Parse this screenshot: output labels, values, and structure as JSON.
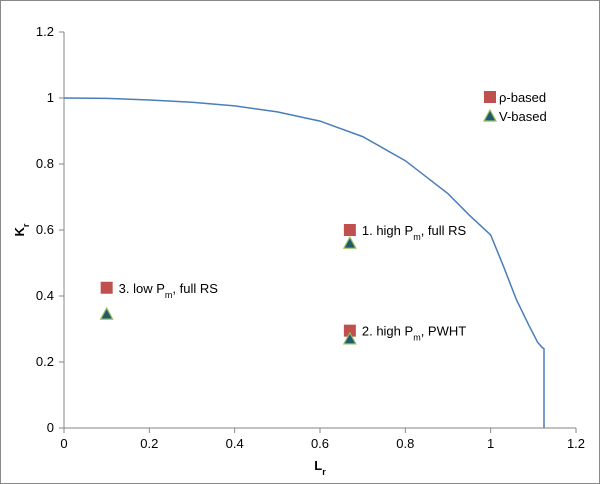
{
  "chart_data": {
    "type": "scatter",
    "xlabel": {
      "text": "L",
      "subscript": "r"
    },
    "ylabel": {
      "text": "K",
      "subscript": "r"
    },
    "xlim": [
      0,
      1.2
    ],
    "xticks": [
      0,
      0.2,
      0.4,
      0.6,
      0.8,
      1,
      1.2
    ],
    "ylim": [
      0,
      1.2
    ],
    "yticks": [
      0,
      0.2,
      0.4,
      0.6,
      0.8,
      1,
      1.2
    ],
    "grid": false,
    "legend": "upper right",
    "curve": {
      "color": "#4a7ebb",
      "x": [
        0,
        0.1,
        0.2,
        0.3,
        0.4,
        0.5,
        0.6,
        0.7,
        0.8,
        0.9,
        0.95,
        1.0,
        1.03,
        1.06,
        1.09,
        1.11,
        1.12,
        1.125,
        1.125
      ],
      "y": [
        1,
        0.999,
        0.994,
        0.987,
        0.976,
        0.958,
        0.93,
        0.883,
        0.81,
        0.71,
        0.645,
        0.585,
        0.49,
        0.39,
        0.31,
        0.26,
        0.245,
        0.24,
        0
      ]
    },
    "series": [
      {
        "name": "ρ-based",
        "color": "#c0504d",
        "marker": "square",
        "x": [
          0.67,
          0.67,
          0.1
        ],
        "values": [
          0.6,
          0.295,
          0.425
        ]
      },
      {
        "name": "V-based",
        "color": "#1f5c70",
        "marker": "triangle",
        "x": [
          0.67,
          0.67,
          0.1
        ],
        "values": [
          0.56,
          0.27,
          0.345
        ]
      }
    ],
    "annotations": [
      {
        "prefix": "1. high P",
        "subscript": "m",
        "suffix": ", full RS"
      },
      {
        "prefix": "2. high P",
        "subscript": "m",
        "suffix": ", PWHT"
      },
      {
        "prefix": "3. low P",
        "subscript": "m",
        "suffix": ", full RS"
      }
    ]
  }
}
